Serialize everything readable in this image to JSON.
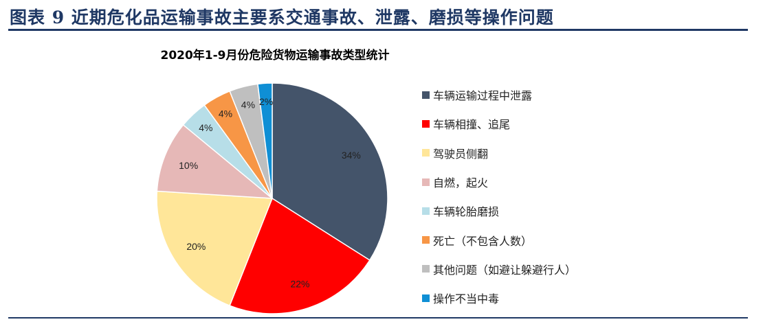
{
  "figure_title": "图表 9   近期危化品运输事故主要系交通事故、泄露、磨损等操作问题",
  "chart_data": {
    "type": "pie",
    "title": "2020年1-9月份危险货物运输事故类型统计",
    "legend_position": "right",
    "start_angle": "12 o'clock, clockwise",
    "slices": [
      {
        "label": "车辆运输过程中泄露",
        "value": 34,
        "display": "34%",
        "color": "#44546A"
      },
      {
        "label": "车辆相撞、追尾",
        "value": 22,
        "display": "22%",
        "color": "#FF0000"
      },
      {
        "label": "驾驶员侧翻",
        "value": 20,
        "display": "20%",
        "color": "#FFE699"
      },
      {
        "label": "自燃，起火",
        "value": 10,
        "display": "10%",
        "color": "#E6B8B7"
      },
      {
        "label": "车辆轮胎磨损",
        "value": 4,
        "display": "4%",
        "color": "#B7DEE8"
      },
      {
        "label": "死亡（不包含人数）",
        "value": 4,
        "display": "4%",
        "color": "#F79646"
      },
      {
        "label": "其他问题（如避让躲避行人）",
        "value": 4,
        "display": "4%",
        "color": "#BFBFBF"
      },
      {
        "label": "操作不当中毒",
        "value": 2,
        "display": "2%",
        "color": "#0F8FD5"
      }
    ]
  }
}
